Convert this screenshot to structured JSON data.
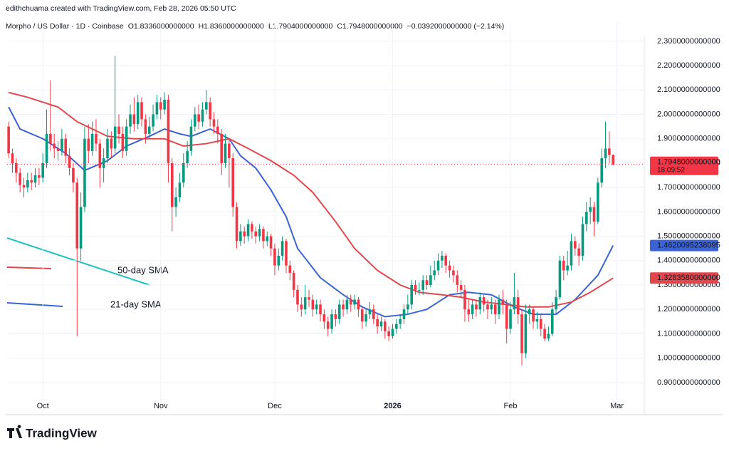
{
  "header": {
    "credit": "edithchuama created with TradingView.com, Feb 28, 2026 05:50 UTC",
    "symbol": "Morpho / US Dollar · 1D · Coinbase",
    "ohlc": [
      {
        "label": "O",
        "value": "1.8336000000000"
      },
      {
        "label": "H",
        "value": "1.8360000000000"
      },
      {
        "label": "L",
        "value": "1.7904000000000"
      },
      {
        "label": "C",
        "value": "1.7948000000000"
      }
    ],
    "change": "−0.0392000000000 (−2.14%)"
  },
  "footer": {
    "brand": "TradingView"
  },
  "chart_data": {
    "type": "candlestick",
    "up_color": "#089981",
    "down_color": "#f23645",
    "xlim": [
      -0.4,
      167.2
    ],
    "ylim": [
      0.847,
      2.323
    ],
    "xticks": [
      {
        "value": 9,
        "label": "Oct"
      },
      {
        "value": 40,
        "label": "Nov"
      },
      {
        "value": 70,
        "label": "Dec"
      },
      {
        "value": 101,
        "label": "2026"
      },
      {
        "value": 132,
        "label": "Feb"
      },
      {
        "value": 160,
        "label": "Mar"
      }
    ],
    "yticks": [
      {
        "value": 2.3,
        "label": "2.3000000000000"
      },
      {
        "value": 2.2,
        "label": "2.2000000000000"
      },
      {
        "value": 2.1,
        "label": "2.1000000000000"
      },
      {
        "value": 2.0,
        "label": "2.0000000000000"
      },
      {
        "value": 1.9,
        "label": "1.9000000000000"
      },
      {
        "value": 1.8,
        "label": "1.8000000000000"
      },
      {
        "value": 1.7,
        "label": "1.7000000000000"
      },
      {
        "value": 1.6,
        "label": "1.6000000000000"
      },
      {
        "value": 1.5,
        "label": "1.5000000000000"
      },
      {
        "value": 1.4,
        "label": "1.4000000000000"
      },
      {
        "value": 1.3,
        "label": "1.3000000000000"
      },
      {
        "value": 1.2,
        "label": "1.2000000000000"
      },
      {
        "value": 1.1,
        "label": "1.1000000000000"
      },
      {
        "value": 1.0,
        "label": "1.0000000000000"
      },
      {
        "value": 0.9,
        "label": "0.9000000000000"
      }
    ],
    "grid": true,
    "last_price": {
      "value": 1.7948,
      "label": "1.7948000000000",
      "countdown": "18:09:52"
    },
    "ohlc": [
      [
        1.95,
        1.97,
        1.82,
        1.84
      ],
      [
        1.84,
        1.86,
        1.76,
        1.8
      ],
      [
        1.8,
        1.82,
        1.72,
        1.76
      ],
      [
        1.76,
        1.78,
        1.68,
        1.71
      ],
      [
        1.71,
        1.74,
        1.66,
        1.7
      ],
      [
        1.7,
        1.76,
        1.68,
        1.73
      ],
      [
        1.73,
        1.76,
        1.69,
        1.72
      ],
      [
        1.72,
        1.78,
        1.7,
        1.75
      ],
      [
        1.75,
        1.78,
        1.71,
        1.74
      ],
      [
        1.74,
        1.84,
        1.72,
        1.8
      ],
      [
        1.8,
        2.02,
        1.78,
        1.92
      ],
      [
        1.92,
        2.14,
        1.85,
        1.88
      ],
      [
        1.88,
        1.92,
        1.82,
        1.86
      ],
      [
        1.86,
        1.89,
        1.81,
        1.85
      ],
      [
        1.85,
        1.94,
        1.83,
        1.9
      ],
      [
        1.9,
        1.92,
        1.8,
        1.83
      ],
      [
        1.83,
        1.86,
        1.75,
        1.78
      ],
      [
        1.78,
        1.8,
        1.68,
        1.72
      ],
      [
        1.72,
        1.74,
        1.09,
        1.45
      ],
      [
        1.45,
        1.68,
        1.4,
        1.62
      ],
      [
        1.62,
        1.95,
        1.6,
        1.9
      ],
      [
        1.9,
        1.96,
        1.8,
        1.85
      ],
      [
        1.85,
        1.97,
        1.83,
        1.92
      ],
      [
        1.92,
        1.98,
        1.85,
        1.88
      ],
      [
        1.88,
        1.9,
        1.7,
        1.78
      ],
      [
        1.78,
        1.86,
        1.72,
        1.82
      ],
      [
        1.82,
        1.94,
        1.8,
        1.9
      ],
      [
        1.9,
        1.93,
        1.82,
        1.86
      ],
      [
        1.86,
        2.24,
        1.84,
        1.95
      ],
      [
        1.95,
        2.0,
        1.88,
        1.92
      ],
      [
        1.92,
        1.95,
        1.82,
        1.85
      ],
      [
        1.85,
        1.98,
        1.83,
        1.95
      ],
      [
        1.95,
        2.04,
        1.92,
        2.0
      ],
      [
        2.0,
        2.07,
        1.93,
        1.96
      ],
      [
        1.96,
        2.08,
        1.94,
        2.05
      ],
      [
        2.05,
        2.07,
        1.95,
        1.98
      ],
      [
        1.98,
        2.0,
        1.88,
        1.92
      ],
      [
        1.92,
        1.99,
        1.9,
        1.95
      ],
      [
        1.95,
        2.04,
        1.93,
        2.0
      ],
      [
        2.0,
        2.08,
        1.98,
        2.05
      ],
      [
        2.05,
        2.07,
        1.98,
        2.02
      ],
      [
        2.02,
        2.09,
        2.0,
        2.06
      ],
      [
        2.06,
        2.08,
        1.72,
        1.8
      ],
      [
        1.8,
        1.82,
        1.52,
        1.62
      ],
      [
        1.62,
        1.7,
        1.58,
        1.66
      ],
      [
        1.66,
        1.76,
        1.64,
        1.72
      ],
      [
        1.72,
        1.84,
        1.7,
        1.8
      ],
      [
        1.8,
        1.89,
        1.78,
        1.85
      ],
      [
        1.85,
        1.98,
        1.83,
        1.95
      ],
      [
        1.95,
        2.03,
        1.93,
        2.0
      ],
      [
        2.0,
        2.04,
        1.94,
        1.97
      ],
      [
        1.97,
        2.05,
        1.95,
        2.02
      ],
      [
        2.02,
        2.1,
        2.0,
        2.05
      ],
      [
        2.05,
        2.07,
        1.95,
        1.98
      ],
      [
        1.98,
        2.01,
        1.92,
        1.95
      ],
      [
        1.95,
        1.98,
        1.88,
        1.92
      ],
      [
        1.92,
        1.94,
        1.75,
        1.8
      ],
      [
        1.8,
        1.92,
        1.78,
        1.88
      ],
      [
        1.88,
        1.9,
        1.7,
        1.82
      ],
      [
        1.82,
        1.84,
        1.58,
        1.62
      ],
      [
        1.62,
        1.64,
        1.45,
        1.48
      ],
      [
        1.48,
        1.55,
        1.46,
        1.52
      ],
      [
        1.52,
        1.54,
        1.47,
        1.5
      ],
      [
        1.5,
        1.57,
        1.48,
        1.55
      ],
      [
        1.55,
        1.56,
        1.49,
        1.52
      ],
      [
        1.52,
        1.54,
        1.47,
        1.5
      ],
      [
        1.5,
        1.55,
        1.48,
        1.53
      ],
      [
        1.53,
        1.54,
        1.45,
        1.48
      ],
      [
        1.48,
        1.52,
        1.46,
        1.5
      ],
      [
        1.5,
        1.51,
        1.42,
        1.45
      ],
      [
        1.45,
        1.47,
        1.34,
        1.38
      ],
      [
        1.38,
        1.45,
        1.36,
        1.42
      ],
      [
        1.42,
        1.5,
        1.4,
        1.48
      ],
      [
        1.48,
        1.49,
        1.35,
        1.38
      ],
      [
        1.38,
        1.4,
        1.32,
        1.35
      ],
      [
        1.35,
        1.36,
        1.25,
        1.28
      ],
      [
        1.28,
        1.3,
        1.19,
        1.22
      ],
      [
        1.22,
        1.25,
        1.17,
        1.2
      ],
      [
        1.2,
        1.3,
        1.18,
        1.25
      ],
      [
        1.25,
        1.28,
        1.21,
        1.24
      ],
      [
        1.24,
        1.26,
        1.17,
        1.2
      ],
      [
        1.2,
        1.24,
        1.18,
        1.22
      ],
      [
        1.22,
        1.24,
        1.15,
        1.18
      ],
      [
        1.18,
        1.2,
        1.12,
        1.15
      ],
      [
        1.15,
        1.17,
        1.09,
        1.12
      ],
      [
        1.12,
        1.2,
        1.1,
        1.18
      ],
      [
        1.18,
        1.2,
        1.13,
        1.16
      ],
      [
        1.16,
        1.24,
        1.14,
        1.22
      ],
      [
        1.22,
        1.24,
        1.17,
        1.2
      ],
      [
        1.2,
        1.26,
        1.18,
        1.24
      ],
      [
        1.24,
        1.26,
        1.19,
        1.22
      ],
      [
        1.22,
        1.26,
        1.2,
        1.24
      ],
      [
        1.24,
        1.25,
        1.17,
        1.2
      ],
      [
        1.2,
        1.21,
        1.12,
        1.15
      ],
      [
        1.15,
        1.2,
        1.13,
        1.18
      ],
      [
        1.18,
        1.23,
        1.16,
        1.2
      ],
      [
        1.2,
        1.22,
        1.14,
        1.16
      ],
      [
        1.16,
        1.18,
        1.1,
        1.13
      ],
      [
        1.13,
        1.17,
        1.11,
        1.15
      ],
      [
        1.15,
        1.16,
        1.08,
        1.11
      ],
      [
        1.11,
        1.13,
        1.07,
        1.09
      ],
      [
        1.09,
        1.14,
        1.08,
        1.12
      ],
      [
        1.12,
        1.16,
        1.1,
        1.14
      ],
      [
        1.14,
        1.18,
        1.12,
        1.16
      ],
      [
        1.16,
        1.22,
        1.14,
        1.2
      ],
      [
        1.2,
        1.26,
        1.18,
        1.22
      ],
      [
        1.22,
        1.32,
        1.2,
        1.3
      ],
      [
        1.3,
        1.32,
        1.26,
        1.28
      ],
      [
        1.28,
        1.31,
        1.26,
        1.28
      ],
      [
        1.28,
        1.34,
        1.26,
        1.32
      ],
      [
        1.32,
        1.34,
        1.28,
        1.3
      ],
      [
        1.3,
        1.38,
        1.29,
        1.34
      ],
      [
        1.34,
        1.4,
        1.32,
        1.36
      ],
      [
        1.36,
        1.43,
        1.34,
        1.4
      ],
      [
        1.4,
        1.44,
        1.37,
        1.42
      ],
      [
        1.42,
        1.43,
        1.35,
        1.38
      ],
      [
        1.38,
        1.4,
        1.33,
        1.36
      ],
      [
        1.36,
        1.38,
        1.31,
        1.34
      ],
      [
        1.34,
        1.36,
        1.27,
        1.3
      ],
      [
        1.3,
        1.32,
        1.25,
        1.28
      ],
      [
        1.28,
        1.3,
        1.15,
        1.2
      ],
      [
        1.2,
        1.24,
        1.15,
        1.18
      ],
      [
        1.18,
        1.24,
        1.16,
        1.22
      ],
      [
        1.22,
        1.24,
        1.17,
        1.2
      ],
      [
        1.2,
        1.27,
        1.18,
        1.25
      ],
      [
        1.25,
        1.26,
        1.19,
        1.22
      ],
      [
        1.22,
        1.24,
        1.16,
        1.2
      ],
      [
        1.2,
        1.25,
        1.18,
        1.22
      ],
      [
        1.22,
        1.24,
        1.14,
        1.18
      ],
      [
        1.18,
        1.26,
        1.16,
        1.24
      ],
      [
        1.24,
        1.28,
        1.18,
        1.22
      ],
      [
        1.22,
        1.24,
        1.06,
        1.12
      ],
      [
        1.12,
        1.23,
        1.1,
        1.2
      ],
      [
        1.2,
        1.35,
        1.18,
        1.25
      ],
      [
        1.25,
        1.28,
        1.14,
        1.18
      ],
      [
        1.18,
        1.2,
        0.97,
        1.02
      ],
      [
        1.02,
        1.22,
        1.0,
        1.18
      ],
      [
        1.18,
        1.22,
        1.14,
        1.2
      ],
      [
        1.2,
        1.21,
        1.12,
        1.15
      ],
      [
        1.15,
        1.19,
        1.12,
        1.16
      ],
      [
        1.16,
        1.18,
        1.09,
        1.12
      ],
      [
        1.12,
        1.14,
        1.07,
        1.08
      ],
      [
        1.08,
        1.13,
        1.07,
        1.1
      ],
      [
        1.1,
        1.23,
        1.09,
        1.2
      ],
      [
        1.2,
        1.28,
        1.18,
        1.25
      ],
      [
        1.25,
        1.42,
        1.24,
        1.4
      ],
      [
        1.4,
        1.42,
        1.32,
        1.36
      ],
      [
        1.36,
        1.44,
        1.34,
        1.38
      ],
      [
        1.38,
        1.51,
        1.36,
        1.48
      ],
      [
        1.48,
        1.5,
        1.42,
        1.45
      ],
      [
        1.45,
        1.47,
        1.38,
        1.42
      ],
      [
        1.42,
        1.58,
        1.4,
        1.55
      ],
      [
        1.55,
        1.64,
        1.52,
        1.6
      ],
      [
        1.6,
        1.66,
        1.55,
        1.62
      ],
      [
        1.62,
        1.64,
        1.5,
        1.56
      ],
      [
        1.56,
        1.74,
        1.55,
        1.72
      ],
      [
        1.72,
        1.86,
        1.7,
        1.82
      ],
      [
        1.82,
        1.97,
        1.78,
        1.86
      ],
      [
        1.86,
        1.93,
        1.8,
        1.8336
      ],
      [
        1.8336,
        1.836,
        1.7904,
        1.7948
      ]
    ],
    "series": [
      {
        "name": "21-day SMA",
        "color": "#3b63d6",
        "end_label": "1.4620095238095",
        "x": [
          0,
          3,
          9,
          15,
          20,
          26,
          31,
          37,
          41,
          45,
          48,
          53,
          58,
          61,
          65,
          69,
          73,
          76,
          82,
          88,
          93,
          99,
          105,
          110,
          116,
          121,
          127,
          133,
          138,
          144,
          149,
          155,
          159
        ],
        "values": [
          2.03,
          1.94,
          1.9,
          1.84,
          1.77,
          1.81,
          1.87,
          1.91,
          1.94,
          1.92,
          1.91,
          1.94,
          1.9,
          1.83,
          1.78,
          1.69,
          1.58,
          1.45,
          1.33,
          1.26,
          1.21,
          1.17,
          1.18,
          1.2,
          1.26,
          1.27,
          1.26,
          1.21,
          1.18,
          1.18,
          1.24,
          1.34,
          1.462
        ]
      },
      {
        "name": "50-day SMA",
        "color": "#e2474b",
        "end_label": "1.3283580000000",
        "x": [
          0,
          5,
          13,
          18,
          26,
          33,
          41,
          46,
          52,
          58,
          63,
          69,
          75,
          80,
          86,
          91,
          97,
          103,
          108,
          114,
          119,
          125,
          131,
          136,
          142,
          148,
          153,
          159
        ],
        "values": [
          2.09,
          2.07,
          2.03,
          1.97,
          1.91,
          1.9,
          1.9,
          1.87,
          1.88,
          1.9,
          1.86,
          1.81,
          1.75,
          1.68,
          1.56,
          1.45,
          1.36,
          1.3,
          1.27,
          1.26,
          1.25,
          1.23,
          1.22,
          1.21,
          1.21,
          1.23,
          1.27,
          1.3284
        ]
      }
    ]
  }
}
